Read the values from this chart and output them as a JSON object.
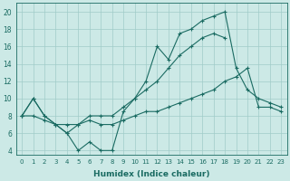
{
  "xlabel": "Humidex (Indice chaleur)",
  "background_color": "#cce9e6",
  "grid_color": "#a0ccc8",
  "line_color": "#1a6b62",
  "xlim": [
    -0.5,
    23.5
  ],
  "ylim": [
    3.5,
    21.0
  ],
  "xticks": [
    0,
    1,
    2,
    3,
    4,
    5,
    6,
    7,
    8,
    9,
    10,
    11,
    12,
    13,
    14,
    15,
    16,
    17,
    18,
    19,
    20,
    21,
    22,
    23
  ],
  "yticks": [
    4,
    6,
    8,
    10,
    12,
    14,
    16,
    18,
    20
  ],
  "line1_x": [
    0,
    1,
    2,
    3,
    4,
    5,
    6,
    7,
    8,
    9,
    10,
    11,
    12,
    13,
    14,
    15,
    16,
    17,
    18,
    19,
    20,
    21,
    22,
    23
  ],
  "line1_y": [
    8,
    10,
    8,
    7,
    6,
    4,
    5,
    4,
    4,
    8.5,
    10,
    12,
    16,
    14.5,
    17.5,
    18,
    19,
    19.5,
    20,
    13.5,
    11,
    10,
    9.5,
    9
  ],
  "line2_x": [
    0,
    1,
    2,
    3,
    4,
    5,
    6,
    7,
    8,
    9,
    10,
    11,
    12,
    13,
    14,
    15,
    16,
    17,
    18
  ],
  "line2_y": [
    8,
    10,
    8,
    7,
    6,
    7,
    8,
    8,
    8,
    9,
    10,
    11,
    12,
    13.5,
    15,
    16,
    17,
    17.5,
    17
  ],
  "line3_x": [
    0,
    1,
    2,
    3,
    4,
    5,
    6,
    7,
    8,
    9,
    10,
    11,
    12,
    13,
    14,
    15,
    16,
    17,
    18,
    19,
    20,
    21,
    22,
    23
  ],
  "line3_y": [
    8,
    8,
    7.5,
    7,
    7,
    7,
    7.5,
    7,
    7,
    7.5,
    8,
    8.5,
    8.5,
    9,
    9.5,
    10,
    10.5,
    11,
    12,
    12.5,
    13.5,
    9,
    9,
    8.5
  ]
}
